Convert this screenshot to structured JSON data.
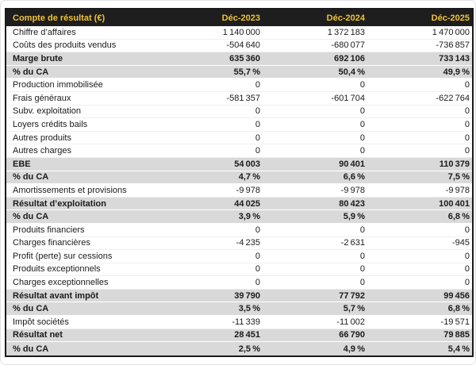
{
  "colors": {
    "header_bg": "#1E1E1E",
    "header_text": "#F1C232",
    "band_bg": "#D9D9D9",
    "border": "#1A1A1A",
    "text": "#1B1B1B",
    "row_sep": "#EFEFEF",
    "page_edge": "#E2E2E2"
  },
  "table": {
    "title_column_header": "Compte de résultat (€)",
    "year_columns": [
      "Déc-2023",
      "Déc-2024",
      "Déc-2025"
    ],
    "rows": [
      {
        "label": "Chiffre d’affaires",
        "values": [
          "1 140 000",
          "1 372 183",
          "1 470 000"
        ],
        "emphasis": false
      },
      {
        "label": "Coûts des produits vendus",
        "values": [
          "-504 640",
          "-680 077",
          "-736 857"
        ],
        "emphasis": false
      },
      {
        "label": "Marge brute",
        "values": [
          "635 360",
          "692 106",
          "733 143"
        ],
        "emphasis": true
      },
      {
        "label": "% du CA",
        "values": [
          "55,7 %",
          "50,4 %",
          "49,9 %"
        ],
        "emphasis": true
      },
      {
        "label": "Production immobilisée",
        "values": [
          "0",
          "0",
          "0"
        ],
        "emphasis": false
      },
      {
        "label": "Frais généraux",
        "values": [
          "-581 357",
          "-601 704",
          "-622 764"
        ],
        "emphasis": false
      },
      {
        "label": "Subv. exploitation",
        "values": [
          "0",
          "0",
          "0"
        ],
        "emphasis": false
      },
      {
        "label": "Loyers crédits bails",
        "values": [
          "0",
          "0",
          "0"
        ],
        "emphasis": false
      },
      {
        "label": "Autres produits",
        "values": [
          "0",
          "0",
          "0"
        ],
        "emphasis": false
      },
      {
        "label": "Autres charges",
        "values": [
          "0",
          "0",
          "0"
        ],
        "emphasis": false
      },
      {
        "label": "EBE",
        "values": [
          "54 003",
          "90 401",
          "110 379"
        ],
        "emphasis": true
      },
      {
        "label": "% du CA",
        "values": [
          "4,7 %",
          "6,6 %",
          "7,5 %"
        ],
        "emphasis": true
      },
      {
        "label": "Amortissements et provisions",
        "values": [
          "-9 978",
          "-9 978",
          "-9 978"
        ],
        "emphasis": false
      },
      {
        "label": "Résultat d’exploitation",
        "values": [
          "44 025",
          "80 423",
          "100 401"
        ],
        "emphasis": true
      },
      {
        "label": "% du CA",
        "values": [
          "3,9 %",
          "5,9 %",
          "6,8 %"
        ],
        "emphasis": true
      },
      {
        "label": "Produits financiers",
        "values": [
          "0",
          "0",
          "0"
        ],
        "emphasis": false
      },
      {
        "label": "Charges financières",
        "values": [
          "-4 235",
          "-2 631",
          "-945"
        ],
        "emphasis": false
      },
      {
        "label": "Profit (perte) sur cessions",
        "values": [
          "0",
          "0",
          "0"
        ],
        "emphasis": false
      },
      {
        "label": "Produits exceptionnels",
        "values": [
          "0",
          "0",
          "0"
        ],
        "emphasis": false
      },
      {
        "label": "Charges exceptionnelles",
        "values": [
          "0",
          "0",
          "0"
        ],
        "emphasis": false
      },
      {
        "label": "Résultat avant impôt",
        "values": [
          "39 790",
          "77 792",
          "99 456"
        ],
        "emphasis": true
      },
      {
        "label": "% du CA",
        "values": [
          "3,5 %",
          "5,7 %",
          "6,8 %"
        ],
        "emphasis": true
      },
      {
        "label": "Impôt sociétés",
        "values": [
          "-11 339",
          "-11 002",
          "-19 571"
        ],
        "emphasis": false
      },
      {
        "label": "Résultat net",
        "values": [
          "28 451",
          "66 790",
          "79 885"
        ],
        "emphasis": true
      },
      {
        "label": "% du CA",
        "values": [
          "2,5 %",
          "4,9 %",
          "5,4 %"
        ],
        "emphasis": true
      }
    ]
  }
}
